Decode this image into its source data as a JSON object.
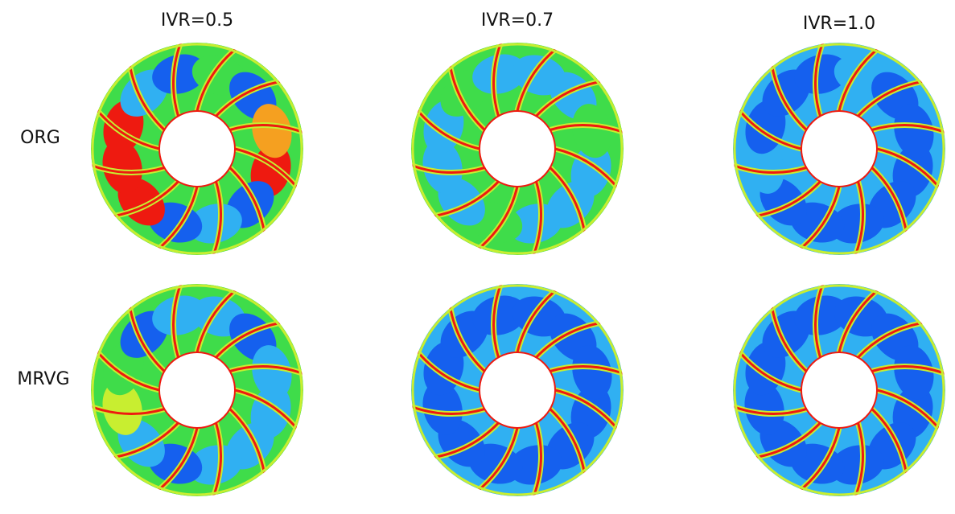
{
  "columns": [
    "IVR=0.5",
    "IVR=0.7",
    "IVR=1.0"
  ],
  "rows": [
    "ORG",
    "MRVG"
  ]
}
